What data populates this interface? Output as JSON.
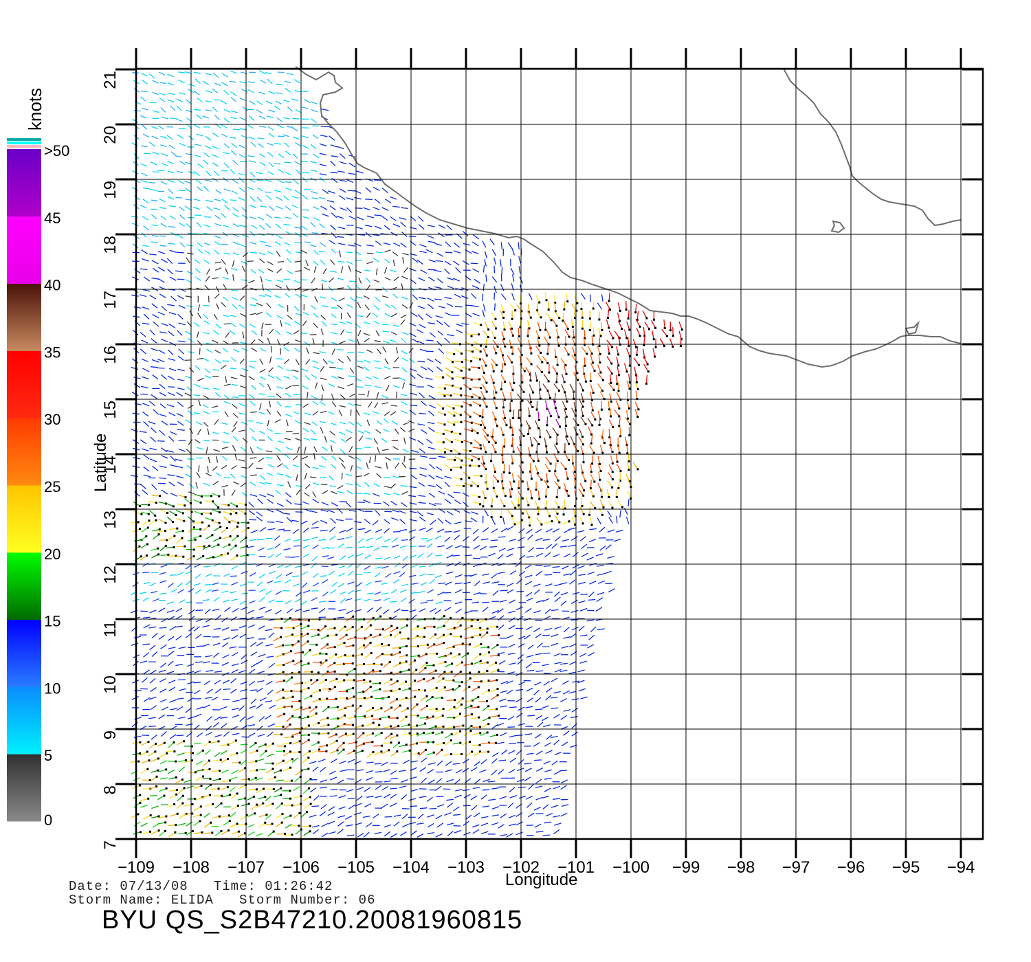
{
  "axes": {
    "xlabel": "Longitude",
    "ylabel": "Latitude",
    "lon_ticks": [
      "−109",
      "−108",
      "−107",
      "−106",
      "−105",
      "−104",
      "−103",
      "−102",
      "−101",
      "−100",
      "−99",
      "−98",
      "−97",
      "−96",
      "−95",
      "−94"
    ],
    "lat_ticks": [
      "7",
      "8",
      "9",
      "10",
      "11",
      "12",
      "13",
      "14",
      "15",
      "16",
      "17",
      "18",
      "19",
      "20",
      "21"
    ],
    "lon_range": [
      -109,
      -94
    ],
    "lat_range": [
      7,
      21
    ]
  },
  "legend": {
    "unit": "knots",
    "labels": [
      "0",
      "5",
      "10",
      "15",
      "20",
      "25",
      "30",
      "35",
      "40",
      "45",
      ">50"
    ],
    "bands": [
      {
        "from": 0,
        "to": 5,
        "top": "#303030",
        "bottom": "#8a8a8a"
      },
      {
        "from": 5,
        "to": 10,
        "top": "#0a8cff",
        "bottom": "#00f0ff"
      },
      {
        "from": 10,
        "to": 15,
        "top": "#0000ff",
        "bottom": "#2a7cff"
      },
      {
        "from": 15,
        "to": 20,
        "top": "#00ff00",
        "bottom": "#006a00"
      },
      {
        "from": 20,
        "to": 25,
        "top": "#ffc400",
        "bottom": "#ffff20"
      },
      {
        "from": 25,
        "to": 30,
        "top": "#ff3a00",
        "bottom": "#ff8a10"
      },
      {
        "from": 30,
        "to": 35,
        "top": "#ff0000",
        "bottom": "#ff2a10"
      },
      {
        "from": 35,
        "to": 40,
        "top": "#4a1208",
        "bottom": "#c88a60"
      },
      {
        "from": 40,
        "to": 45,
        "top": "#ff00ff",
        "bottom": "#e800e8"
      },
      {
        "from": 45,
        "to": 50,
        "top": "#6a00c8",
        "bottom": "#b000c8"
      }
    ],
    "cap_colors": [
      "#1aa",
      "#00ffff",
      "#ffb6c1"
    ]
  },
  "meta": {
    "date_line": "Date: 07/13/08   Time: 01:26:42",
    "storm_line": "Storm Name: ELIDA   Storm Number: 06",
    "product": "BYU QS_S2B47210.20081960815"
  },
  "colors": {
    "coastline": "#6e6e6e",
    "grid": "#000000"
  }
}
